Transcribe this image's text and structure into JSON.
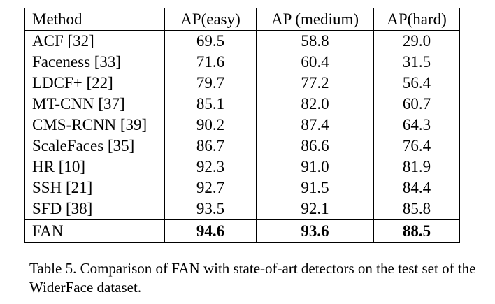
{
  "table": {
    "headers": [
      "Method",
      "AP(easy)",
      "AP (medium)",
      "AP(hard)"
    ],
    "rows": [
      {
        "method": "ACF [32]",
        "easy": "69.5",
        "medium": "58.8",
        "hard": "29.0"
      },
      {
        "method": "Faceness [33]",
        "easy": "71.6",
        "medium": "60.4",
        "hard": "31.5"
      },
      {
        "method": "LDCF+ [22]",
        "easy": "79.7",
        "medium": "77.2",
        "hard": "56.4"
      },
      {
        "method": "MT-CNN [37]",
        "easy": "85.1",
        "medium": "82.0",
        "hard": "60.7"
      },
      {
        "method": "CMS-RCNN [39]",
        "easy": "90.2",
        "medium": "87.4",
        "hard": "64.3"
      },
      {
        "method": "ScaleFaces [35]",
        "easy": "86.7",
        "medium": "86.6",
        "hard": "76.4"
      },
      {
        "method": "HR [10]",
        "easy": "92.3",
        "medium": "91.0",
        "hard": "81.9"
      },
      {
        "method": "SSH [21]",
        "easy": "92.7",
        "medium": "91.5",
        "hard": "84.4"
      },
      {
        "method": "SFD [38]",
        "easy": "93.5",
        "medium": "92.1",
        "hard": "85.8"
      },
      {
        "method": "FAN",
        "easy": "94.6",
        "medium": "93.6",
        "hard": "88.5"
      }
    ]
  },
  "caption": "Table 5. Comparison of FAN with state-of-art detectors on the test set of the WiderFace dataset."
}
